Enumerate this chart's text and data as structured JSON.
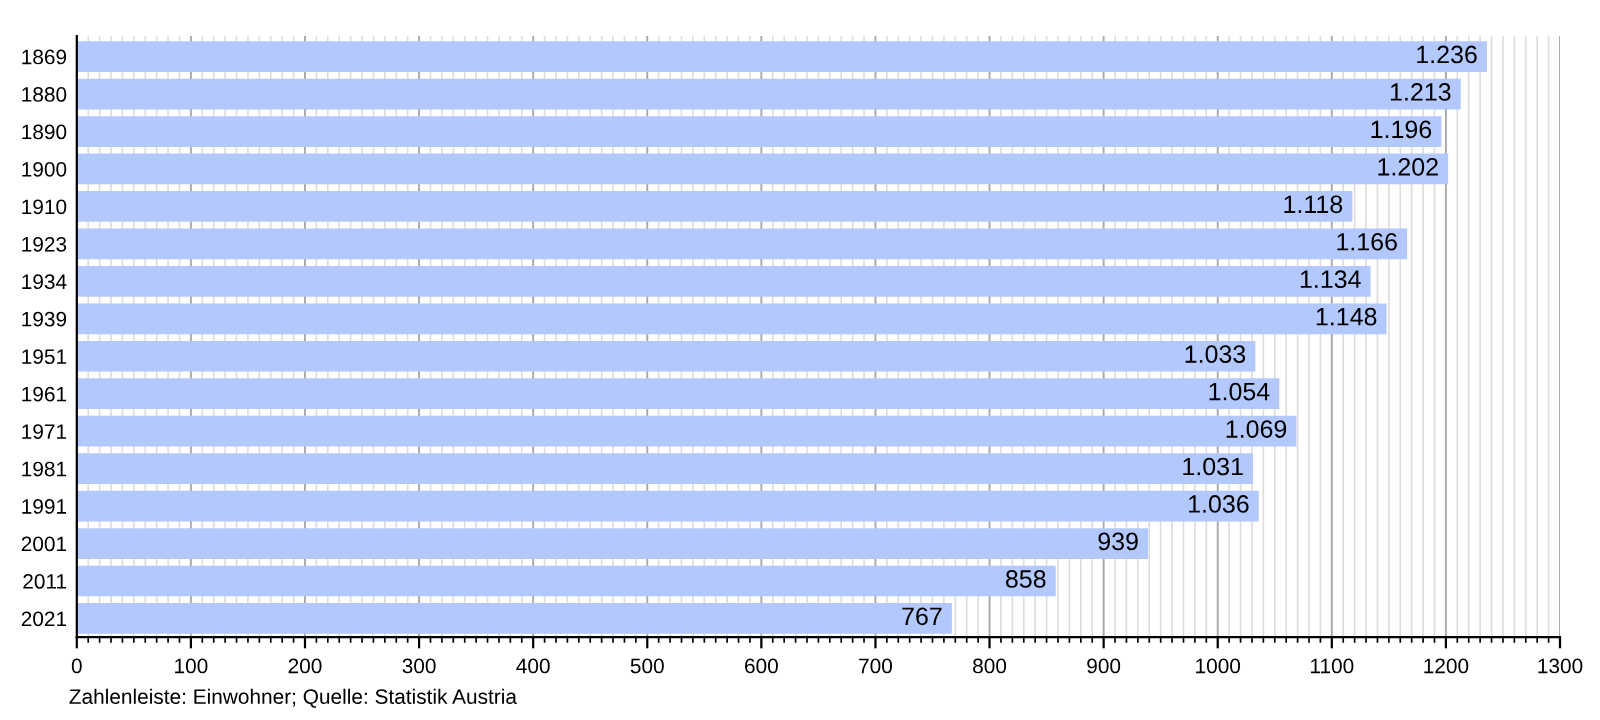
{
  "chart_data": {
    "type": "bar",
    "orientation": "horizontal",
    "categories": [
      "1869",
      "1880",
      "1890",
      "1900",
      "1910",
      "1923",
      "1934",
      "1939",
      "1951",
      "1961",
      "1971",
      "1981",
      "1991",
      "2001",
      "2011",
      "2021"
    ],
    "values": [
      1236,
      1213,
      1196,
      1202,
      1118,
      1166,
      1134,
      1148,
      1033,
      1054,
      1069,
      1031,
      1036,
      939,
      858,
      767
    ],
    "value_labels": [
      "1.236",
      "1.213",
      "1.196",
      "1.202",
      "1.118",
      "1.166",
      "1.134",
      "1.148",
      "1.033",
      "1.054",
      "1.069",
      "1.031",
      "1.036",
      "939",
      "858",
      "767"
    ],
    "color": "#b3c8fd",
    "xlim": [
      0,
      1300
    ],
    "xticks": [
      0,
      100,
      200,
      300,
      400,
      500,
      600,
      700,
      800,
      900,
      1000,
      1100,
      1200,
      1300
    ],
    "grid": "x",
    "annotations": [
      "Zahlenleiste: Einwohner; Quelle: Statistik Austria"
    ]
  }
}
